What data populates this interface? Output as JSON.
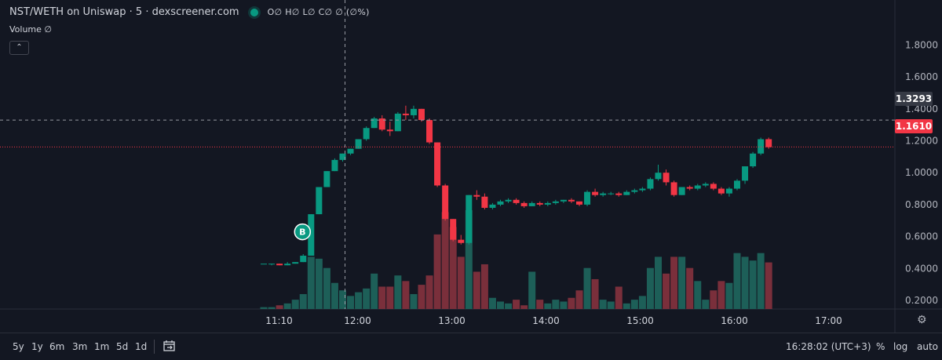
{
  "header": {
    "symbol_title": "NST/WETH on Uniswap · 5 · dexscreener.com",
    "ohlc": "O∅ H∅ L∅ C∅ ∅ (∅%)",
    "volume_label": "Volume ∅",
    "collapse_icon": "chevron-up-icon"
  },
  "price_tags": {
    "crosshair_price": "1.3293",
    "last_price": "1.1610"
  },
  "bottom_bar": {
    "ranges": [
      "5y",
      "1y",
      "6m",
      "3m",
      "1m",
      "5d",
      "1d"
    ],
    "date_range_icon": "calendar-arrow-icon",
    "clock": "16:28:02 (UTC+3)",
    "percent_label": "%",
    "log_label": "log",
    "auto_label": "auto"
  },
  "settings_icon": "gear-icon",
  "colors": {
    "background": "#131722",
    "up": "#089981",
    "down": "#f23645",
    "up_volume": "#1d5f58",
    "down_volume": "#7a2f3b",
    "crosshair": "#9598a1",
    "last_price_line": "#f23645"
  },
  "chart_data": {
    "type": "candlestick",
    "yaxis_ticks": [
      "0.2000",
      "0.4000",
      "0.6000",
      "0.8000",
      "1.0000",
      "1.2000",
      "1.4000",
      "1.6000",
      "1.8000"
    ],
    "ylim": [
      0.06,
      1.87
    ],
    "xaxis_ticks": [
      "11:10",
      "12:00",
      "13:00",
      "14:00",
      "15:00",
      "16:00",
      "17:00"
    ],
    "crosshair": {
      "x_time": "11:52",
      "y_price": 1.3293
    },
    "last_price": 1.161,
    "markers": [
      {
        "label": "B",
        "candle_index": 6
      }
    ],
    "candles": [
      [
        0.43,
        0.43,
        0.43,
        0.43,
        0.01
      ],
      [
        0.43,
        0.43,
        0.42,
        0.43,
        0.01
      ],
      [
        0.43,
        0.43,
        0.42,
        0.42,
        0.02
      ],
      [
        0.42,
        0.44,
        0.42,
        0.43,
        0.03
      ],
      [
        0.43,
        0.44,
        0.43,
        0.44,
        0.05
      ],
      [
        0.44,
        0.49,
        0.44,
        0.48,
        0.08
      ],
      [
        0.48,
        0.74,
        0.48,
        0.74,
        0.28
      ],
      [
        0.74,
        0.91,
        0.74,
        0.91,
        0.27
      ],
      [
        0.91,
        1.01,
        0.91,
        1.01,
        0.22
      ],
      [
        1.01,
        1.09,
        1.01,
        1.08,
        0.14
      ],
      [
        1.08,
        1.12,
        1.07,
        1.12,
        0.1
      ],
      [
        1.12,
        1.15,
        1.11,
        1.15,
        0.07
      ],
      [
        1.15,
        1.21,
        1.15,
        1.21,
        0.09
      ],
      [
        1.21,
        1.29,
        1.2,
        1.28,
        0.11
      ],
      [
        1.28,
        1.35,
        1.28,
        1.34,
        0.19
      ],
      [
        1.34,
        1.36,
        1.26,
        1.27,
        0.12
      ],
      [
        1.27,
        1.32,
        1.23,
        1.26,
        0.12
      ],
      [
        1.26,
        1.38,
        1.26,
        1.37,
        0.18
      ],
      [
        1.37,
        1.42,
        1.33,
        1.36,
        0.15
      ],
      [
        1.36,
        1.42,
        1.34,
        1.4,
        0.08
      ],
      [
        1.4,
        1.4,
        1.32,
        1.33,
        0.13
      ],
      [
        1.33,
        1.34,
        1.18,
        1.19,
        0.18
      ],
      [
        1.19,
        1.19,
        0.91,
        0.92,
        0.4
      ],
      [
        0.92,
        0.93,
        0.7,
        0.71,
        0.52
      ],
      [
        0.71,
        0.71,
        0.57,
        0.58,
        0.44
      ],
      [
        0.58,
        0.61,
        0.55,
        0.56,
        0.28
      ],
      [
        0.56,
        0.86,
        0.55,
        0.86,
        0.53
      ],
      [
        0.86,
        0.89,
        0.83,
        0.85,
        0.2
      ],
      [
        0.85,
        0.87,
        0.77,
        0.78,
        0.24
      ],
      [
        0.78,
        0.81,
        0.77,
        0.8,
        0.06
      ],
      [
        0.8,
        0.83,
        0.79,
        0.82,
        0.04
      ],
      [
        0.82,
        0.84,
        0.81,
        0.83,
        0.03
      ],
      [
        0.83,
        0.84,
        0.8,
        0.81,
        0.05
      ],
      [
        0.81,
        0.82,
        0.78,
        0.79,
        0.02
      ],
      [
        0.79,
        0.82,
        0.79,
        0.81,
        0.2
      ],
      [
        0.81,
        0.82,
        0.79,
        0.8,
        0.05
      ],
      [
        0.8,
        0.82,
        0.79,
        0.81,
        0.03
      ],
      [
        0.81,
        0.83,
        0.8,
        0.82,
        0.05
      ],
      [
        0.82,
        0.83,
        0.81,
        0.83,
        0.04
      ],
      [
        0.83,
        0.84,
        0.81,
        0.82,
        0.06
      ],
      [
        0.82,
        0.82,
        0.79,
        0.8,
        0.1
      ],
      [
        0.8,
        0.89,
        0.79,
        0.88,
        0.22
      ],
      [
        0.88,
        0.9,
        0.85,
        0.86,
        0.16
      ],
      [
        0.86,
        0.88,
        0.85,
        0.87,
        0.05
      ],
      [
        0.87,
        0.88,
        0.86,
        0.87,
        0.04
      ],
      [
        0.87,
        0.88,
        0.85,
        0.86,
        0.12
      ],
      [
        0.86,
        0.89,
        0.86,
        0.88,
        0.03
      ],
      [
        0.88,
        0.9,
        0.87,
        0.89,
        0.05
      ],
      [
        0.89,
        0.91,
        0.88,
        0.9,
        0.07
      ],
      [
        0.9,
        0.97,
        0.89,
        0.96,
        0.22
      ],
      [
        0.96,
        1.05,
        0.95,
        1.0,
        0.28
      ],
      [
        1.0,
        1.02,
        0.92,
        0.94,
        0.19
      ],
      [
        0.94,
        0.95,
        0.85,
        0.86,
        0.28
      ],
      [
        0.86,
        0.91,
        0.86,
        0.91,
        0.28
      ],
      [
        0.91,
        0.92,
        0.89,
        0.9,
        0.22
      ],
      [
        0.9,
        0.93,
        0.89,
        0.92,
        0.15
      ],
      [
        0.92,
        0.94,
        0.91,
        0.93,
        0.05
      ],
      [
        0.93,
        0.94,
        0.89,
        0.9,
        0.1
      ],
      [
        0.9,
        0.91,
        0.86,
        0.87,
        0.15
      ],
      [
        0.87,
        0.91,
        0.85,
        0.9,
        0.14
      ],
      [
        0.9,
        0.96,
        0.89,
        0.95,
        0.3
      ],
      [
        0.95,
        1.04,
        0.93,
        1.04,
        0.28
      ],
      [
        1.04,
        1.13,
        1.03,
        1.12,
        0.26
      ],
      [
        1.12,
        1.22,
        1.11,
        1.21,
        0.3
      ],
      [
        1.21,
        1.22,
        1.15,
        1.16,
        0.25
      ]
    ]
  }
}
